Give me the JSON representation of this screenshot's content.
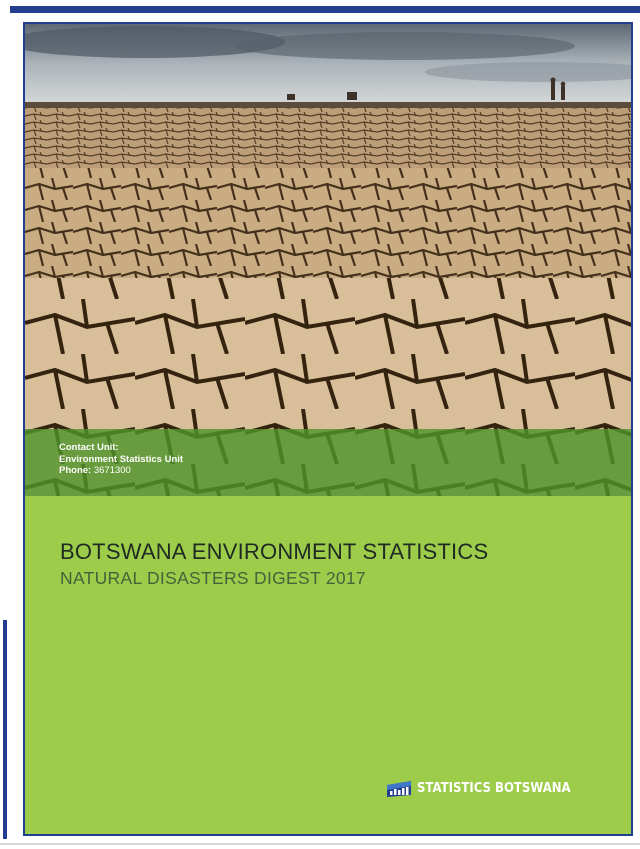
{
  "contact": {
    "unit_label": "Contact Unit:",
    "unit_name": "Environment Statistics Unit",
    "phone_label": "Phone:",
    "phone_value": "3671300"
  },
  "title": {
    "main": "BOTSWANA ENVIRONMENT STATISTICS",
    "sub": "NATURAL DISASTERS DIGEST 2017"
  },
  "brand": {
    "name": "STATISTICS BOTSWANA",
    "logo_icon": "statistics-botswana-logo-icon"
  },
  "colors": {
    "frame_blue": "#233d8f",
    "cover_green": "#9ccc4a",
    "band_green": "#4c9628"
  }
}
